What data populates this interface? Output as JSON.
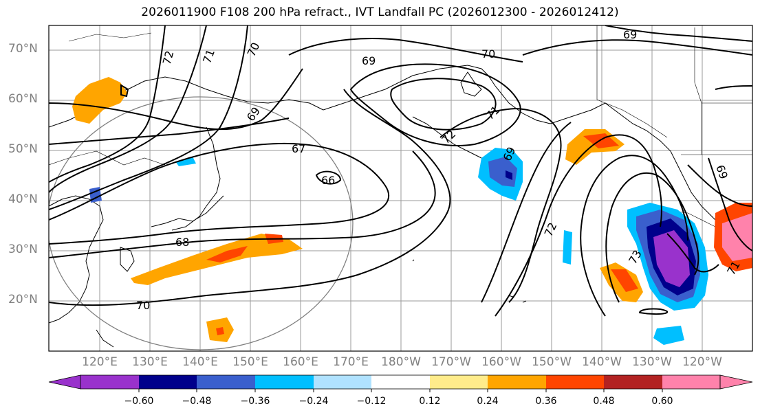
{
  "title": "2026011900 F108 200 hPa refract., IVT Landfall PC (2026012300 - 2026012412)",
  "lat_labels": [
    "70°N",
    "60°N",
    "50°N",
    "40°N",
    "30°N",
    "20°N"
  ],
  "lon_labels": [
    "120°E",
    "130°E",
    "140°E",
    "150°E",
    "160°E",
    "170°E",
    "180°W",
    "170°W",
    "160°W",
    "150°W",
    "140°W",
    "130°W",
    "120°W"
  ],
  "colorbar": {
    "tick_labels": [
      "−0.60",
      "−0.48",
      "−0.36",
      "−0.24",
      "−0.12",
      "0.12",
      "0.24",
      "0.36",
      "0.48",
      "0.60"
    ],
    "colors": [
      "#9932cc",
      "#00008b",
      "#3a5fcd",
      "#00bfff",
      "#b0e2ff",
      "#ffffff",
      "#ffec8b",
      "#ffa500",
      "#ff4500",
      "#b22222",
      "#ff82ab"
    ]
  },
  "contour_labels": [
    "72",
    "71",
    "70",
    "69",
    "69",
    "70",
    "69",
    "67",
    "66",
    "68",
    "70",
    "71",
    "72",
    "69",
    "72",
    "73",
    "69",
    "71"
  ]
}
